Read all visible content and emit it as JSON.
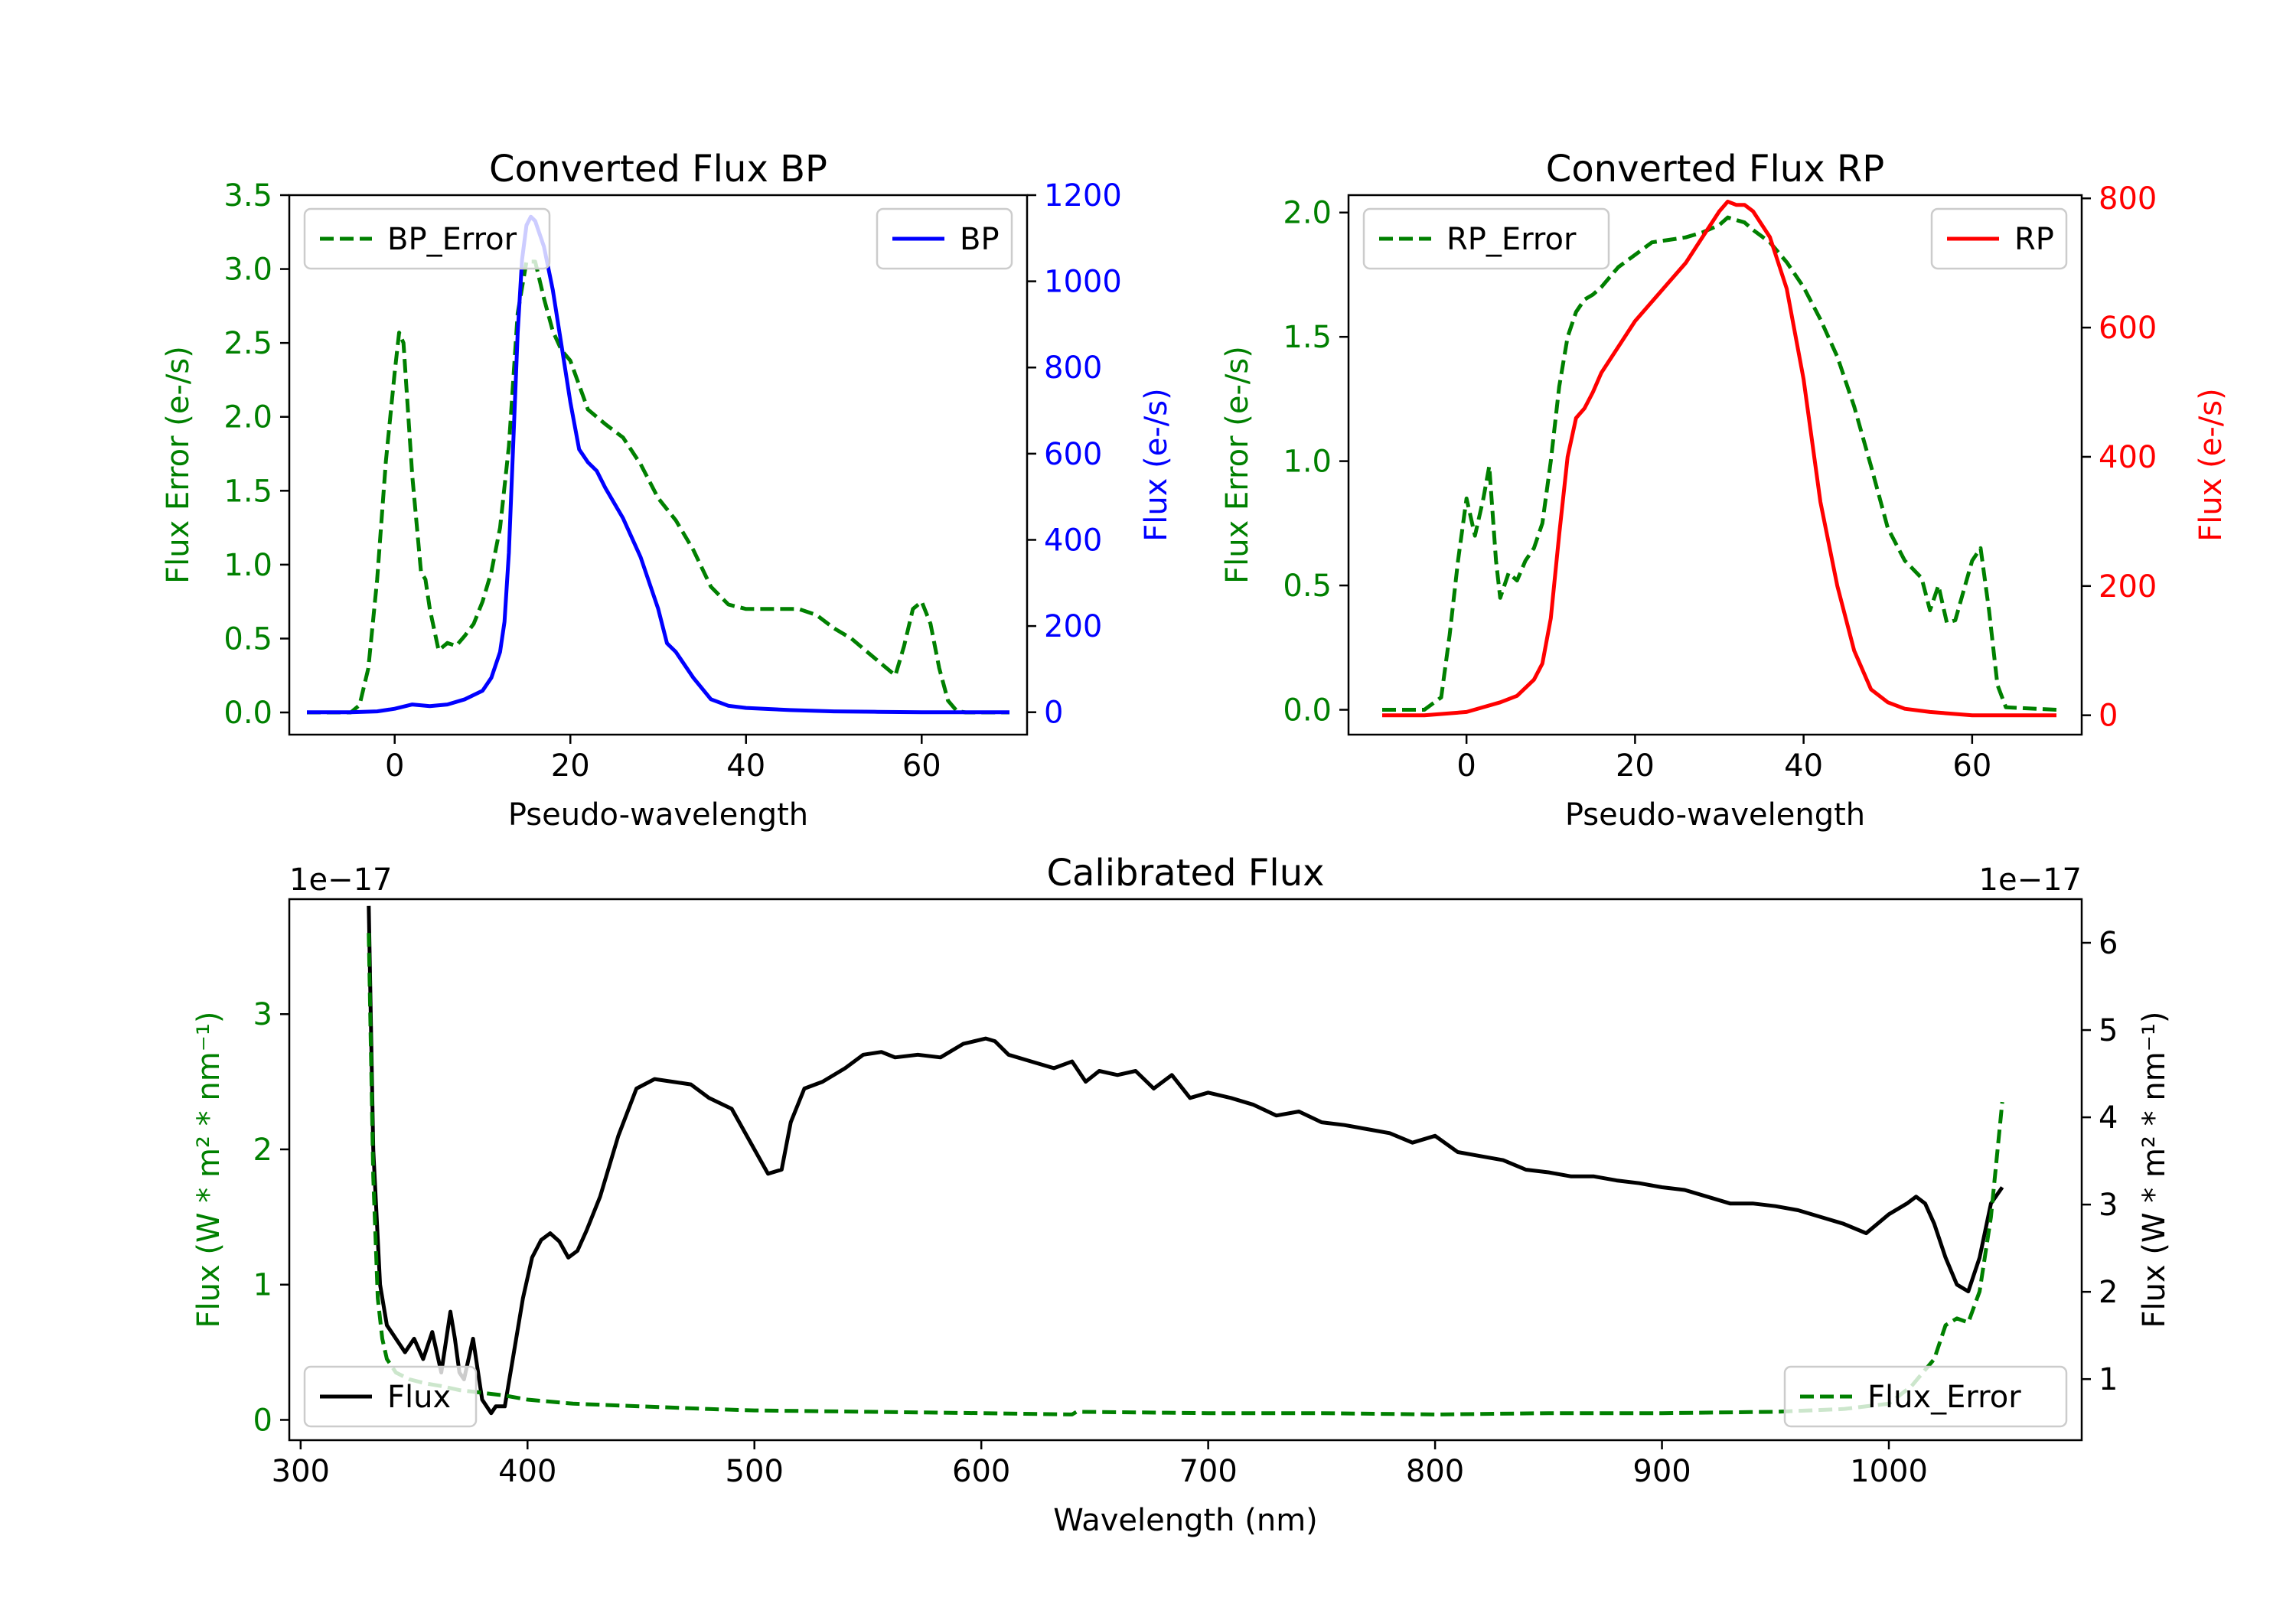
{
  "chart_data": [
    {
      "type": "line",
      "title": "Converted Flux BP",
      "xlabel": "Pseudo-wavelength",
      "ylabel_left": "Flux Error (e-/s)",
      "ylabel_right": "Flux (e-/s)",
      "xlim": [
        -12,
        72
      ],
      "ylim_left": [
        -0.15,
        3.5
      ],
      "ylim_right": [
        -52,
        1200
      ],
      "x_ticks": [
        "0",
        "20",
        "40",
        "60"
      ],
      "y_ticks_left": [
        "0.0",
        "0.5",
        "1.0",
        "1.5",
        "2.0",
        "2.5",
        "3.0",
        "3.5"
      ],
      "y_ticks_right": [
        "0",
        "200",
        "400",
        "600",
        "800",
        "1000",
        "1200"
      ],
      "legend_left": "BP_Error",
      "legend_right": "BP",
      "series": [
        {
          "name": "BP_Error",
          "axis": "left",
          "color": "#008000",
          "style": "dashed",
          "x": [
            -10,
            -5,
            -4,
            -3,
            -2,
            -1,
            0,
            0.5,
            1,
            2,
            3,
            3.5,
            4,
            5,
            6,
            7,
            8,
            9,
            10,
            11,
            12,
            13,
            14,
            15,
            16,
            17,
            18,
            19,
            20,
            22,
            24,
            26,
            28,
            30,
            32,
            34,
            36,
            38,
            40,
            42,
            44,
            46,
            48,
            50,
            52,
            54,
            56,
            57,
            58,
            59,
            60,
            61,
            62,
            63,
            64,
            65,
            70
          ],
          "y": [
            0,
            0,
            0.05,
            0.3,
            0.9,
            1.7,
            2.3,
            2.57,
            2.5,
            1.6,
            0.95,
            0.9,
            0.7,
            0.42,
            0.47,
            0.45,
            0.52,
            0.6,
            0.75,
            0.95,
            1.25,
            1.8,
            2.7,
            3.05,
            3.05,
            2.8,
            2.58,
            2.45,
            2.38,
            2.05,
            1.95,
            1.86,
            1.68,
            1.45,
            1.3,
            1.1,
            0.85,
            0.73,
            0.7,
            0.7,
            0.7,
            0.7,
            0.66,
            0.57,
            0.5,
            0.4,
            0.3,
            0.25,
            0.45,
            0.7,
            0.75,
            0.6,
            0.3,
            0.08,
            0.01,
            0,
            0
          ]
        },
        {
          "name": "BP",
          "axis": "right",
          "color": "#0000ff",
          "style": "solid",
          "x": [
            -10,
            -5,
            -2,
            0,
            2,
            4,
            6,
            8,
            10,
            11,
            12,
            12.5,
            13,
            14,
            14.5,
            15,
            15.5,
            16,
            17,
            18,
            19,
            20,
            21,
            22,
            23,
            24,
            26,
            28,
            30,
            31,
            32,
            34,
            36,
            38,
            40,
            45,
            50,
            55,
            60,
            65,
            70
          ],
          "y": [
            0,
            0,
            2,
            8,
            18,
            14,
            18,
            30,
            50,
            80,
            140,
            210,
            370,
            880,
            1050,
            1130,
            1150,
            1140,
            1080,
            980,
            850,
            720,
            610,
            580,
            560,
            520,
            450,
            360,
            240,
            160,
            140,
            80,
            30,
            15,
            10,
            5,
            2,
            1,
            0,
            0,
            0
          ]
        }
      ]
    },
    {
      "type": "line",
      "title": "Converted Flux RP",
      "xlabel": "Pseudo-wavelength",
      "ylabel_left": "Flux Error (e-/s)",
      "ylabel_right": "Flux (e-/s)",
      "xlim": [
        -14,
        73
      ],
      "ylim_left": [
        -0.1,
        2.07
      ],
      "ylim_right": [
        -30,
        805
      ],
      "x_ticks": [
        "0",
        "20",
        "40",
        "60"
      ],
      "y_ticks_left": [
        "0.0",
        "0.5",
        "1.0",
        "1.5",
        "2.0"
      ],
      "y_ticks_right": [
        "0",
        "200",
        "400",
        "600",
        "800"
      ],
      "legend_left": "RP_Error",
      "legend_right": "RP",
      "series": [
        {
          "name": "RP_Error",
          "axis": "left",
          "color": "#008000",
          "style": "dashed",
          "x": [
            -10,
            -5,
            -3,
            -2,
            -1,
            0,
            1,
            2,
            2.7,
            3.5,
            4,
            4.5,
            5,
            6,
            7,
            8,
            9,
            10,
            11,
            12,
            13,
            14,
            15,
            16,
            18,
            20,
            22,
            24,
            26,
            28,
            30,
            31,
            32,
            33,
            34,
            36,
            38,
            40,
            42,
            44,
            46,
            48,
            50,
            52,
            54,
            55,
            56,
            57,
            58,
            59,
            60,
            61,
            62,
            63,
            64,
            70
          ],
          "y": [
            0,
            0,
            0.05,
            0.3,
            0.6,
            0.85,
            0.7,
            0.85,
            0.98,
            0.6,
            0.45,
            0.5,
            0.55,
            0.52,
            0.6,
            0.65,
            0.75,
            1.0,
            1.3,
            1.5,
            1.6,
            1.65,
            1.67,
            1.7,
            1.78,
            1.83,
            1.88,
            1.89,
            1.9,
            1.92,
            1.95,
            1.98,
            1.97,
            1.96,
            1.93,
            1.88,
            1.8,
            1.7,
            1.57,
            1.42,
            1.22,
            0.98,
            0.73,
            0.6,
            0.53,
            0.4,
            0.5,
            0.35,
            0.36,
            0.48,
            0.6,
            0.65,
            0.4,
            0.1,
            0.01,
            0
          ]
        },
        {
          "name": "RP",
          "axis": "right",
          "color": "#ff0000",
          "style": "solid",
          "x": [
            -10,
            -5,
            0,
            4,
            6,
            8,
            9,
            10,
            11,
            12,
            13,
            14,
            15,
            16,
            18,
            20,
            22,
            24,
            26,
            28,
            30,
            31,
            32,
            33,
            34,
            36,
            38,
            40,
            42,
            44,
            46,
            48,
            50,
            52,
            55,
            60,
            65,
            70
          ],
          "y": [
            0,
            0,
            5,
            20,
            30,
            55,
            80,
            150,
            280,
            400,
            460,
            475,
            500,
            530,
            570,
            610,
            640,
            670,
            700,
            740,
            780,
            795,
            790,
            790,
            780,
            740,
            660,
            520,
            330,
            200,
            100,
            40,
            20,
            10,
            5,
            0,
            0,
            0
          ]
        }
      ]
    },
    {
      "type": "line",
      "title": "Calibrated Flux",
      "xlabel": "Wavelength (nm)",
      "ylabel_left": "Flux (W * m² * nm⁻¹)",
      "ylabel_right": "Flux (W * m² * nm⁻¹)",
      "offset_left": "1e−17",
      "offset_right": "1e−17",
      "xlim": [
        295,
        1085
      ],
      "ylim_left": [
        -0.15,
        3.85
      ],
      "ylim_right": [
        0.3,
        6.5
      ],
      "x_ticks": [
        "300",
        "400",
        "500",
        "600",
        "700",
        "800",
        "900",
        "1000"
      ],
      "y_ticks_left": [
        "0",
        "1",
        "2",
        "3"
      ],
      "y_ticks_right": [
        "1",
        "2",
        "3",
        "4",
        "5",
        "6"
      ],
      "legend_left": "Flux",
      "legend_right": "Flux_Error",
      "series": [
        {
          "name": "Flux",
          "axis": "left",
          "color": "#000000",
          "style": "solid",
          "x": [
            330,
            332,
            335,
            338,
            342,
            346,
            350,
            354,
            358,
            362,
            366,
            368,
            370,
            372,
            376,
            380,
            384,
            386,
            390,
            394,
            398,
            402,
            406,
            410,
            414,
            418,
            422,
            426,
            432,
            440,
            448,
            456,
            464,
            472,
            480,
            490,
            500,
            506,
            512,
            516,
            522,
            530,
            540,
            548,
            556,
            562,
            572,
            582,
            592,
            602,
            606,
            612,
            622,
            632,
            640,
            646,
            652,
            660,
            668,
            676,
            684,
            692,
            700,
            710,
            720,
            730,
            740,
            750,
            760,
            770,
            780,
            790,
            800,
            810,
            820,
            830,
            840,
            850,
            860,
            870,
            880,
            890,
            900,
            910,
            920,
            930,
            940,
            950,
            960,
            970,
            980,
            990,
            1000,
            1008,
            1012,
            1016,
            1020,
            1025,
            1030,
            1035,
            1040,
            1045,
            1050
          ],
          "y": [
            3.8,
            2.0,
            1.0,
            0.7,
            0.6,
            0.5,
            0.6,
            0.45,
            0.65,
            0.35,
            0.8,
            0.6,
            0.35,
            0.3,
            0.6,
            0.15,
            0.05,
            0.1,
            0.1,
            0.5,
            0.9,
            1.2,
            1.33,
            1.38,
            1.32,
            1.2,
            1.25,
            1.4,
            1.65,
            2.1,
            2.45,
            2.52,
            2.5,
            2.48,
            2.38,
            2.3,
            2.0,
            1.82,
            1.85,
            2.2,
            2.45,
            2.5,
            2.6,
            2.7,
            2.72,
            2.68,
            2.7,
            2.68,
            2.78,
            2.82,
            2.8,
            2.7,
            2.65,
            2.6,
            2.65,
            2.5,
            2.58,
            2.55,
            2.58,
            2.45,
            2.55,
            2.38,
            2.42,
            2.38,
            2.33,
            2.25,
            2.28,
            2.2,
            2.18,
            2.15,
            2.12,
            2.05,
            2.1,
            1.98,
            1.95,
            1.92,
            1.85,
            1.83,
            1.8,
            1.8,
            1.77,
            1.75,
            1.72,
            1.7,
            1.65,
            1.6,
            1.6,
            1.58,
            1.55,
            1.5,
            1.45,
            1.38,
            1.52,
            1.6,
            1.65,
            1.6,
            1.45,
            1.2,
            1.0,
            0.95,
            1.2,
            1.6,
            1.72
          ]
        },
        {
          "name": "Flux_Error",
          "axis": "left",
          "color": "#008000",
          "style": "dashed",
          "x": [
            330,
            332,
            334,
            336,
            338,
            342,
            348,
            355,
            362,
            370,
            380,
            390,
            400,
            420,
            450,
            480,
            500,
            550,
            600,
            640,
            642,
            700,
            750,
            800,
            850,
            900,
            950,
            980,
            1000,
            1010,
            1020,
            1025,
            1030,
            1035,
            1040,
            1045,
            1050
          ],
          "y": [
            3.6,
            1.8,
            0.9,
            0.6,
            0.45,
            0.35,
            0.3,
            0.27,
            0.25,
            0.22,
            0.2,
            0.18,
            0.15,
            0.12,
            0.1,
            0.08,
            0.07,
            0.06,
            0.05,
            0.04,
            0.06,
            0.05,
            0.05,
            0.04,
            0.05,
            0.05,
            0.06,
            0.08,
            0.12,
            0.25,
            0.45,
            0.7,
            0.75,
            0.72,
            0.95,
            1.5,
            2.35
          ]
        }
      ]
    }
  ]
}
